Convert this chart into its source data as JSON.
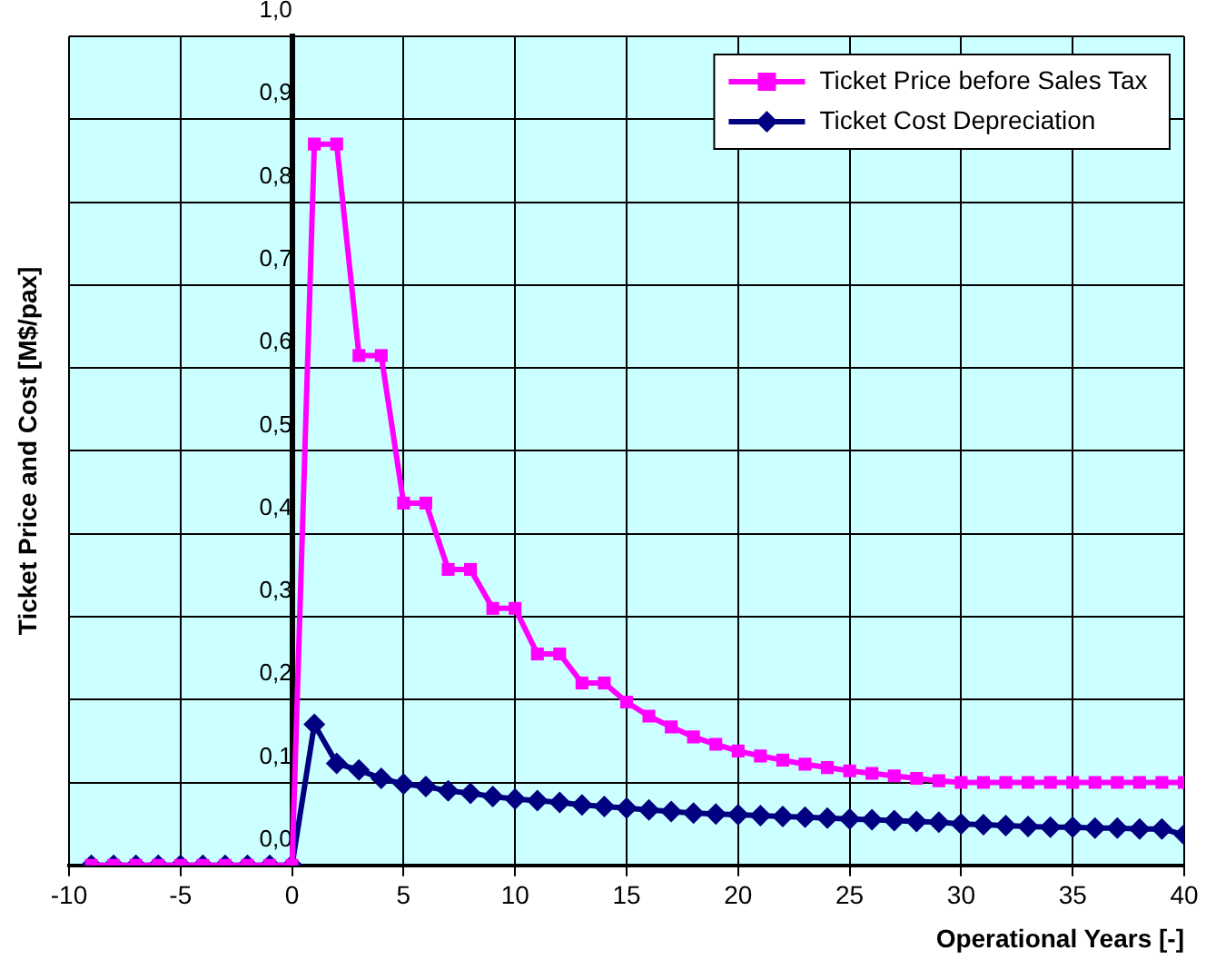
{
  "chart_data": {
    "type": "line",
    "xlabel": "Operational Years [-]",
    "ylabel": "Ticket Price and Cost [M$/pax]",
    "x": [
      -9,
      -8,
      -7,
      -6,
      -5,
      -4,
      -3,
      -2,
      -1,
      0,
      1,
      2,
      3,
      4,
      5,
      6,
      7,
      8,
      9,
      10,
      11,
      12,
      13,
      14,
      15,
      16,
      17,
      18,
      19,
      20,
      21,
      22,
      23,
      24,
      25,
      26,
      27,
      28,
      29,
      30,
      31,
      32,
      33,
      34,
      35,
      36,
      37,
      38,
      39,
      40
    ],
    "series": [
      {
        "name": "Ticket Price before Sales Tax",
        "color": "#ff00ff",
        "marker": "square",
        "values": [
          0,
          0,
          0,
          0,
          0,
          0,
          0,
          0,
          0,
          0,
          0.87,
          0.87,
          0.615,
          0.615,
          0.437,
          0.437,
          0.357,
          0.357,
          0.31,
          0.31,
          0.255,
          0.255,
          0.22,
          0.22,
          0.197,
          0.18,
          0.167,
          0.155,
          0.146,
          0.138,
          0.132,
          0.127,
          0.122,
          0.118,
          0.114,
          0.111,
          0.108,
          0.105,
          0.102,
          0.1,
          0.1,
          0.1,
          0.1,
          0.1,
          0.1,
          0.1,
          0.1,
          0.1,
          0.1,
          0.1
        ]
      },
      {
        "name": "Ticket Cost Depreciation",
        "color": "#000080",
        "marker": "diamond",
        "values": [
          0,
          0,
          0,
          0,
          0,
          0,
          0,
          0,
          0,
          0,
          0.17,
          0.123,
          0.115,
          0.105,
          0.098,
          0.095,
          0.09,
          0.087,
          0.083,
          0.08,
          0.078,
          0.076,
          0.073,
          0.071,
          0.069,
          0.067,
          0.065,
          0.063,
          0.062,
          0.061,
          0.06,
          0.059,
          0.058,
          0.057,
          0.056,
          0.055,
          0.054,
          0.053,
          0.052,
          0.05,
          0.049,
          0.048,
          0.047,
          0.046,
          0.046,
          0.045,
          0.045,
          0.044,
          0.044,
          0.037
        ]
      }
    ],
    "xlim": [
      -10,
      40
    ],
    "xticks": [
      -10,
      -5,
      0,
      5,
      10,
      15,
      20,
      25,
      30,
      35,
      40
    ],
    "ylim": [
      0,
      1
    ],
    "yticks": [
      {
        "value": 0,
        "label": "0,0"
      },
      {
        "value": 0.1,
        "label": "0,1"
      },
      {
        "value": 0.2,
        "label": "0,2"
      },
      {
        "value": 0.3,
        "label": "0,3"
      },
      {
        "value": 0.4,
        "label": "0,4"
      },
      {
        "value": 0.5,
        "label": "0,5"
      },
      {
        "value": 0.6,
        "label": "0,6"
      },
      {
        "value": 0.7,
        "label": "0,7"
      },
      {
        "value": 0.8,
        "label": "0,8"
      },
      {
        "value": 0.9,
        "label": "0,9"
      },
      {
        "value": 1,
        "label": "1,0"
      }
    ],
    "grid": true,
    "legend": "top right",
    "line_style": "solid"
  }
}
